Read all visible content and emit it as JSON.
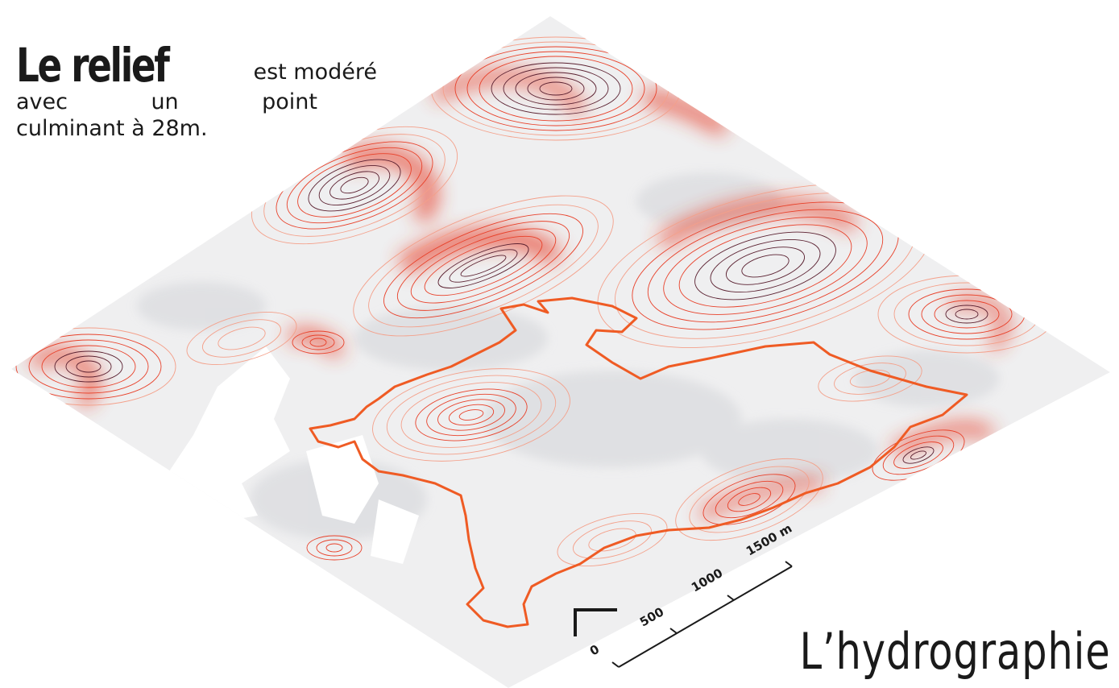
{
  "intro": {
    "heading": "Le relief",
    "words_line1": "est modéré",
    "words_line2": [
      "avec",
      "un",
      "point"
    ],
    "line3": "culminant à 28m."
  },
  "section_title": "L’hydrographie",
  "scale_bar": {
    "labels": [
      "0",
      "500",
      "1000",
      "1500 m"
    ],
    "values": [
      0,
      500,
      1000,
      1500
    ],
    "unit": "m"
  },
  "colors": {
    "contour_high": "#5a2030",
    "contour_mid": "#e8412a",
    "contour_low": "#f4a08a",
    "terrain": "#e6e7e8",
    "boundary": "#ef5b24"
  }
}
